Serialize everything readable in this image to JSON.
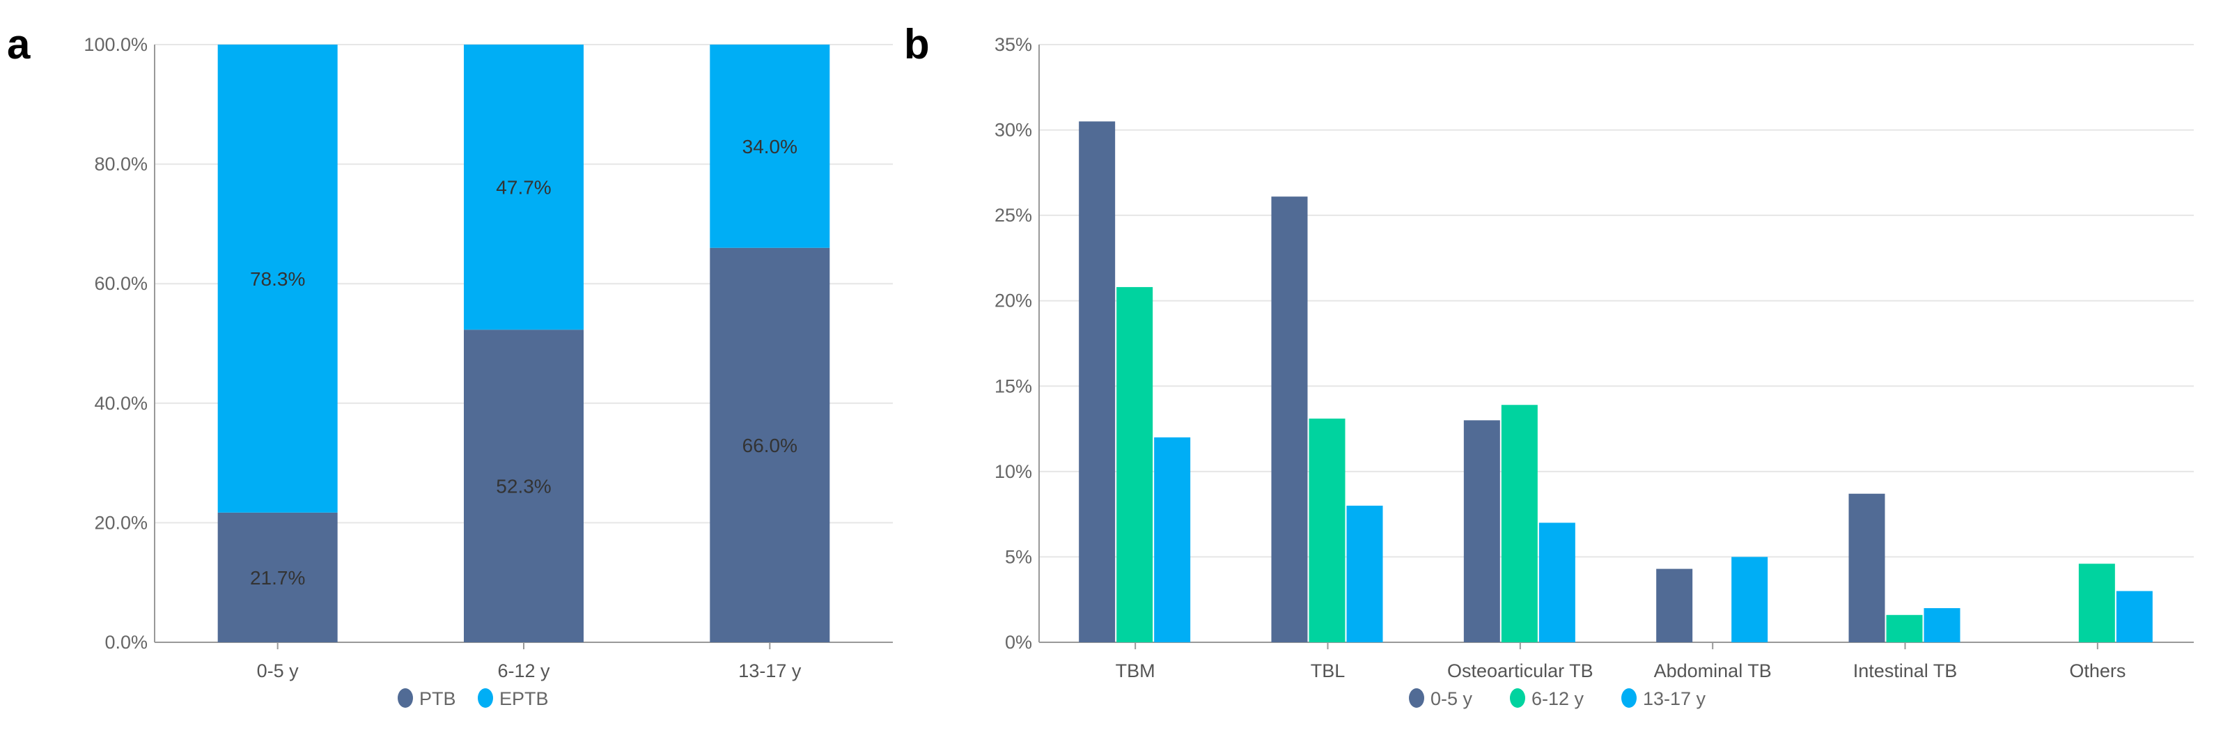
{
  "chart_data": [
    {
      "panel": "a",
      "type": "bar",
      "stacked": true,
      "categories": [
        "0-5 y",
        "6-12 y",
        "13-17 y"
      ],
      "series": [
        {
          "name": "PTB",
          "values": [
            21.7,
            52.3,
            66.0
          ],
          "labels": [
            "21.7%",
            "52.3%",
            "66.0%"
          ],
          "color": "#516b95"
        },
        {
          "name": "EPTB",
          "values": [
            78.3,
            47.7,
            34.0
          ],
          "labels": [
            "78.3%",
            "47.7%",
            "34.0%"
          ],
          "color": "#00aef5"
        }
      ],
      "yticks": [
        "0.0%",
        "20.0%",
        "40.0%",
        "60.0%",
        "80.0%",
        "100.0%"
      ],
      "ylim": [
        0,
        100
      ],
      "grid": true,
      "legend": "bottom-center"
    },
    {
      "panel": "b",
      "type": "bar",
      "stacked": false,
      "categories": [
        "TBM",
        "TBL",
        "Osteoarticular TB",
        "Abdominal TB",
        "Intestinal TB",
        "Others"
      ],
      "series": [
        {
          "name": "0-5 y",
          "values": [
            30.5,
            26.1,
            13.0,
            4.3,
            8.7,
            0
          ],
          "color": "#516b95"
        },
        {
          "name": "6-12 y",
          "values": [
            20.8,
            13.1,
            13.9,
            0,
            1.6,
            4.6
          ],
          "color": "#00d39f"
        },
        {
          "name": "13-17 y",
          "values": [
            12.0,
            8.0,
            7.0,
            5.0,
            2.0,
            3.0
          ],
          "color": "#00aef5"
        }
      ],
      "yticks": [
        "0%",
        "5%",
        "10%",
        "15%",
        "20%",
        "25%",
        "30%",
        "35%"
      ],
      "ylim": [
        0,
        35
      ],
      "grid": true,
      "legend": "bottom-center"
    }
  ]
}
